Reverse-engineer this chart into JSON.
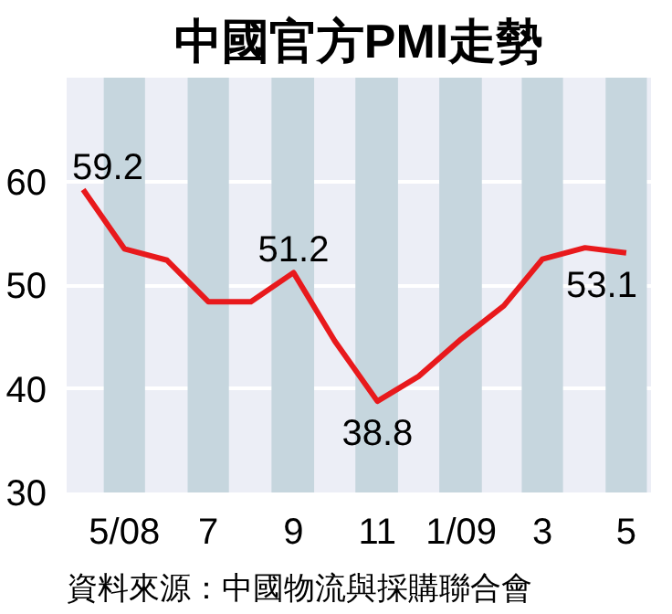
{
  "chart_data": {
    "type": "line",
    "title": "中國官方PMI走勢",
    "x": [
      "2008-04",
      "2008-05",
      "2008-06",
      "2008-07",
      "2008-08",
      "2008-09",
      "2008-10",
      "2008-11",
      "2008-12",
      "2009-01",
      "2009-02",
      "2009-03",
      "2009-04",
      "2009-05"
    ],
    "series": [
      {
        "color": "#e8191c",
        "values": [
          59.2,
          53.5,
          52.4,
          48.4,
          48.4,
          51.2,
          44.6,
          38.8,
          41.2,
          44.8,
          48.0,
          52.5,
          53.6,
          53.1
        ],
        "value_labels": [
          "59.2",
          null,
          null,
          null,
          null,
          "51.2",
          null,
          "38.8",
          null,
          null,
          null,
          null,
          null,
          "53.1"
        ]
      }
    ],
    "xlim": [
      "2008-03-20",
      "2009-05-19"
    ],
    "xticks": [
      {
        "value": "2008-05",
        "label": "5/08"
      },
      {
        "value": "2008-07",
        "label": "7"
      },
      {
        "value": "2008-09",
        "label": "9"
      },
      {
        "value": "2008-11",
        "label": "11"
      },
      {
        "value": "2009-01",
        "label": "1/09"
      },
      {
        "value": "2009-03",
        "label": "3"
      },
      {
        "value": "2009-05",
        "label": "5"
      }
    ],
    "ylim": [
      30,
      70
    ],
    "yticks": [
      30,
      40,
      50,
      60
    ],
    "grid": "y",
    "marker": "none",
    "line_style": "solid",
    "bands": [
      {
        "axis": "x",
        "from": "2008-04-16",
        "to": "2008-05-16",
        "color": "#c6d6de"
      },
      {
        "axis": "x",
        "from": "2008-06-16",
        "to": "2008-07-16",
        "color": "#c6d6de"
      },
      {
        "axis": "x",
        "from": "2008-08-16",
        "to": "2008-09-16",
        "color": "#c6d6de"
      },
      {
        "axis": "x",
        "from": "2008-10-16",
        "to": "2008-11-16",
        "color": "#c6d6de"
      },
      {
        "axis": "x",
        "from": "2008-12-16",
        "to": "2009-01-16",
        "color": "#c6d6de"
      },
      {
        "axis": "x",
        "from": "2009-02-14",
        "to": "2009-03-16",
        "color": "#c6d6de"
      },
      {
        "axis": "x",
        "from": "2009-04-16",
        "to": "2009-05-16",
        "color": "#c6d6de"
      }
    ],
    "annotations": [
      "資料來源：中國物流與採購聯合會"
    ]
  }
}
